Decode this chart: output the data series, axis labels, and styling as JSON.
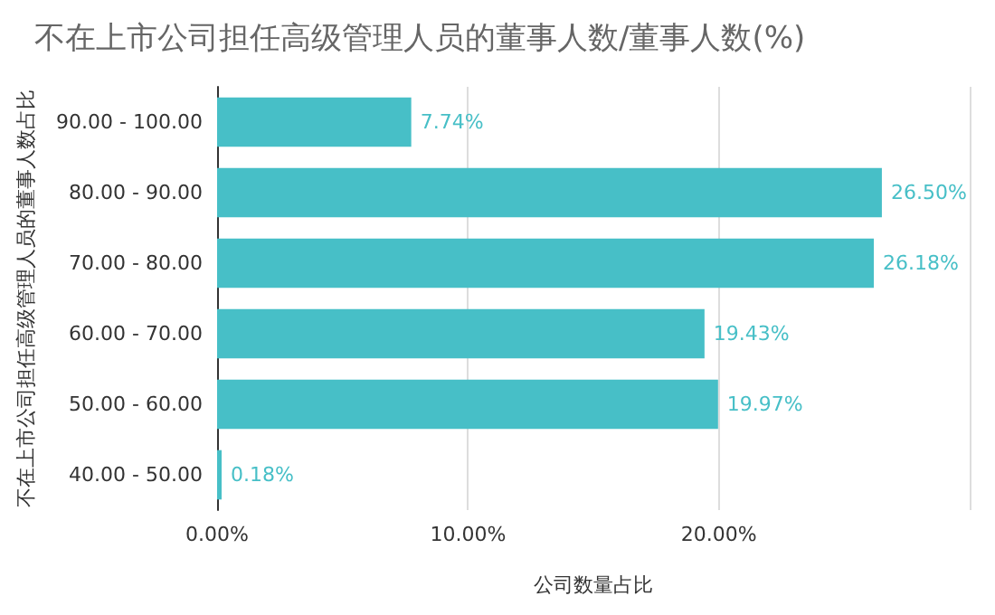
{
  "chart_data": {
    "type": "bar",
    "orientation": "horizontal",
    "title": "不在上市公司担任高级管理人员的董事人数/董事人数(%)",
    "xlabel": "公司数量占比",
    "ylabel": "不在上市公司担任高级管理人员的董事人数占比",
    "categories": [
      "90.00 - 100.00",
      "80.00 - 90.00",
      "70.00 - 80.00",
      "60.00 - 70.00",
      "50.00 - 60.00",
      "40.00 - 50.00"
    ],
    "values": [
      7.74,
      26.5,
      26.18,
      19.43,
      19.97,
      0.18
    ],
    "value_labels": [
      "7.74%",
      "26.50%",
      "26.18%",
      "19.43%",
      "19.97%",
      "0.18%"
    ],
    "color": "#47bfc7",
    "xlim": [
      0,
      30
    ],
    "xticks": [
      {
        "value": 0,
        "label": "0.00%"
      },
      {
        "value": 10,
        "label": "10.00%"
      },
      {
        "value": 20,
        "label": "20.00%"
      },
      {
        "value": 30,
        "label": null
      }
    ],
    "grid": "x"
  }
}
